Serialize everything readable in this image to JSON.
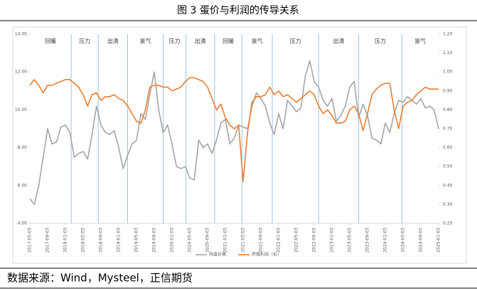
{
  "chart_data": {
    "type": "line",
    "title": "图 3 蛋价与利润的传导关系",
    "x": [
      "2017-05-03",
      "2017-06-03",
      "2017-07-03",
      "2017-08-03",
      "2017-09-03",
      "2017-10-03",
      "2017-11-03",
      "2017-12-03",
      "2018-01-03",
      "2018-02-03",
      "2018-03-03",
      "2018-04-03",
      "2018-05-03",
      "2018-06-03",
      "2018-07-03",
      "2018-08-03",
      "2018-09-03",
      "2018-10-03",
      "2018-11-03",
      "2018-12-03",
      "2019-01-03",
      "2019-02-03",
      "2019-03-03",
      "2019-04-03",
      "2019-05-03",
      "2019-06-03",
      "2019-07-03",
      "2019-08-03",
      "2019-09-03",
      "2019-10-03",
      "2019-11-03",
      "2019-12-03",
      "2020-01-03",
      "2020-02-03",
      "2020-03-03",
      "2020-04-03",
      "2020-05-03",
      "2020-06-03",
      "2020-07-03",
      "2020-08-03",
      "2020-09-03",
      "2020-10-03",
      "2020-11-03",
      "2020-12-03",
      "2021-01-03",
      "2021-02-03",
      "2021-03-03",
      "2021-04-03",
      "2021-05-03",
      "2021-06-03",
      "2021-07-03",
      "2021-08-03",
      "2021-09-03",
      "2021-10-03",
      "2021-11-03",
      "2021-12-03",
      "2022-01-03",
      "2022-02-03",
      "2022-03-03",
      "2022-04-03",
      "2022-05-03",
      "2022-06-03",
      "2022-07-03",
      "2022-08-03",
      "2022-09-03",
      "2022-10-03",
      "2022-11-03",
      "2022-12-03",
      "2023-01-03",
      "2023-02-03",
      "2023-03-03",
      "2023-04-03",
      "2023-05-03",
      "2023-06-03",
      "2023-07-03",
      "2023-08-03",
      "2023-09-03",
      "2023-10-03",
      "2023-11-03",
      "2023-12-03",
      "2024-01-03",
      "2024-02-03",
      "2024-03-03",
      "2024-04-03",
      "2024-05-03",
      "2024-06-03",
      "2024-07-03",
      "2024-08-03",
      "2024-09-03",
      "2024-10-03",
      "2024-11-03",
      "2024-12-03",
      "2025-01-03"
    ],
    "series": [
      {
        "name": "鸡蛋价格",
        "color": "#a5a5a5",
        "values": [
          5.3,
          5.0,
          6.0,
          7.5,
          9.0,
          8.2,
          8.3,
          9.1,
          9.2,
          8.8,
          7.5,
          7.7,
          7.8,
          7.4,
          8.7,
          10.2,
          9.2,
          8.8,
          8.7,
          8.9,
          8.0,
          6.9,
          7.6,
          8.2,
          8.4,
          9.8,
          9.5,
          10.8,
          12.0,
          10.0,
          8.8,
          9.2,
          8.2,
          7.0,
          6.9,
          7.0,
          6.4,
          6.3,
          8.4,
          8.0,
          8.2,
          7.7,
          8.4,
          9.3,
          9.5,
          8.2,
          8.5,
          9.2,
          9.1,
          9.0,
          10.2,
          10.9,
          10.6,
          10.2,
          9.3,
          8.7,
          9.8,
          9.0,
          10.5,
          10.2,
          9.9,
          10.1,
          11.8,
          12.6,
          11.5,
          11.2,
          10.5,
          10.2,
          10.6,
          9.4,
          9.7,
          10.2,
          11.2,
          11.5,
          9.6,
          10.3,
          9.7,
          8.5,
          8.4,
          8.2,
          9.3,
          8.8,
          9.8,
          10.5,
          10.4,
          10.7,
          10.5,
          10.3,
          10.6,
          10.1,
          10.2,
          10.0,
          9.0
        ]
      },
      {
        "name": "养殖利润（右）",
        "color": "#ed7d31",
        "axis": "y2",
        "values": [
          0.93,
          0.96,
          0.93,
          0.89,
          0.93,
          0.93,
          0.94,
          0.95,
          0.96,
          0.96,
          0.94,
          0.92,
          0.88,
          0.82,
          0.88,
          0.89,
          0.85,
          0.87,
          0.87,
          0.88,
          0.86,
          0.85,
          0.82,
          0.78,
          0.74,
          0.73,
          0.8,
          0.92,
          0.93,
          0.93,
          0.92,
          0.92,
          0.9,
          0.91,
          0.92,
          0.95,
          0.97,
          0.97,
          0.96,
          0.95,
          0.92,
          0.86,
          0.8,
          0.83,
          0.76,
          0.72,
          0.7,
          0.72,
          0.42,
          0.68,
          0.84,
          0.87,
          0.87,
          0.88,
          0.92,
          0.88,
          0.9,
          0.87,
          0.88,
          0.86,
          0.84,
          0.86,
          0.88,
          0.9,
          0.88,
          0.82,
          0.78,
          0.8,
          0.77,
          0.73,
          0.73,
          0.74,
          0.8,
          0.82,
          0.78,
          0.69,
          0.78,
          0.88,
          0.91,
          0.93,
          0.94,
          0.94,
          0.8,
          0.7,
          0.82,
          0.84,
          0.85,
          0.88,
          0.9,
          0.92,
          0.91,
          0.91,
          0.91
        ]
      }
    ],
    "xlim": [
      "2017-05-03",
      "2025-01-03"
    ],
    "xticks": [
      "2017-05-03",
      "2017-09-03",
      "2018-01-03",
      "2018-05-03",
      "2018-09-03",
      "2019-01-03",
      "2019-05-03",
      "2019-09-03",
      "2020-01-03",
      "2020-05-03",
      "2020-09-03",
      "2021-01-03",
      "2021-05-03",
      "2021-09-03",
      "2022-01-03",
      "2022-05-03",
      "2022-09-03",
      "2023-01-03",
      "2023-05-03",
      "2023-09-03",
      "2024-01-03",
      "2024-05-03",
      "2024-09-03",
      "2025-01-03"
    ],
    "ylim": [
      4,
      14
    ],
    "yticks": [
      {
        "value": 4,
        "label": "4.00"
      },
      {
        "value": 6,
        "label": "6.00"
      },
      {
        "value": 8,
        "label": "8.00"
      },
      {
        "value": 10,
        "label": "10.00"
      },
      {
        "value": 12,
        "label": "12.00"
      },
      {
        "value": 14,
        "label": "14.00"
      }
    ],
    "y2lim": [
      0.2,
      1.2
    ],
    "y2ticks": [
      {
        "value": 0.2,
        "label": "0.20"
      },
      {
        "value": 0.3,
        "label": "0.30"
      },
      {
        "value": 0.4,
        "label": "0.40"
      },
      {
        "value": 0.5,
        "label": "0.50"
      },
      {
        "value": 0.6,
        "label": "0.60"
      },
      {
        "value": 0.7,
        "label": "0.70"
      },
      {
        "value": 0.8,
        "label": "0.80"
      },
      {
        "value": 0.9,
        "label": "0.90"
      },
      {
        "value": 1.0,
        "label": "1.00"
      },
      {
        "value": 1.1,
        "label": "1.10"
      },
      {
        "value": 1.2,
        "label": "1.20"
      }
    ],
    "phases": [
      {
        "label": "回暖",
        "start": "2017-05-03",
        "end": "2018-02-12"
      },
      {
        "label": "压力",
        "start": "2018-02-12",
        "end": "2018-08-15"
      },
      {
        "label": "出清",
        "start": "2018-08-15",
        "end": "2019-03-03"
      },
      {
        "label": "景气",
        "start": "2019-03-03",
        "end": "2019-11-03"
      },
      {
        "label": "压力",
        "start": "2019-11-03",
        "end": "2020-04-08"
      },
      {
        "label": "出清",
        "start": "2020-04-08",
        "end": "2020-10-20"
      },
      {
        "label": "回暖",
        "start": "2020-10-20",
        "end": "2021-04-25"
      },
      {
        "label": "景气",
        "start": "2021-04-25",
        "end": "2021-11-20"
      },
      {
        "label": "压力",
        "start": "2021-11-20",
        "end": "2022-10-03"
      },
      {
        "label": "出清",
        "start": "2022-10-03",
        "end": "2023-07-03"
      },
      {
        "label": "压力",
        "start": "2023-07-03",
        "end": "2024-04-25"
      },
      {
        "label": "景气",
        "start": "2024-04-25",
        "end": "2025-01-03"
      }
    ]
  },
  "source": "数据来源：Wind，Mysteel，正信期货"
}
